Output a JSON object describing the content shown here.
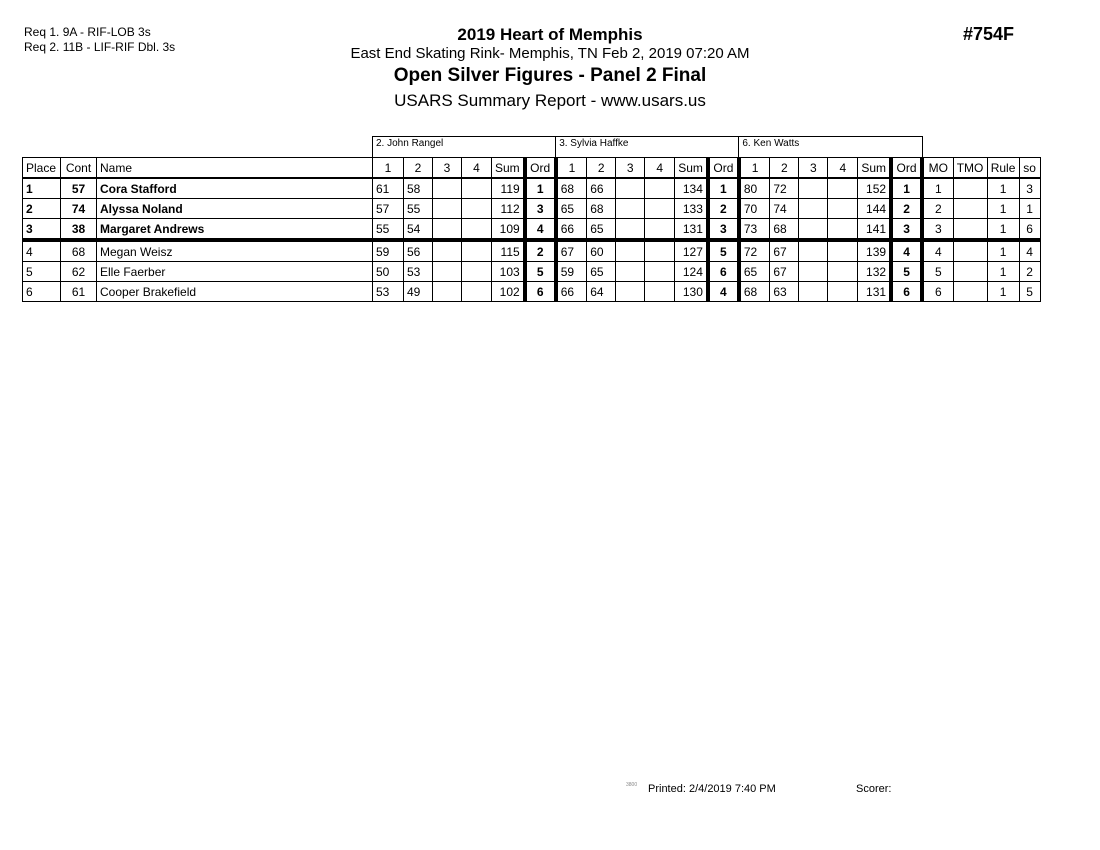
{
  "requirements": [
    "Req  1.  9A - RIF-LOB 3s",
    "Req  2.  11B - LIF-RIF Dbl. 3s"
  ],
  "header": {
    "event": "2019 Heart of Memphis",
    "venue": "East End Skating Rink- Memphis, TN   Feb 2, 2019  07:20 AM",
    "category": "Open Silver Figures - Panel 2 Final",
    "report": "USARS Summary Report - www.usars.us",
    "code": "#754F"
  },
  "judges": [
    "2.  John Rangel",
    "3.  Sylvia Haffke",
    "6.  Ken Watts"
  ],
  "columns": {
    "place": "Place",
    "cont": "Cont",
    "name": "Name",
    "scores": [
      "1",
      "2",
      "3",
      "4"
    ],
    "sum": "Sum",
    "ord": "Ord",
    "mo": "MO",
    "tmo": "TMO",
    "rule": "Rule",
    "so": "so"
  },
  "rows": [
    {
      "place": "1",
      "cont": "57",
      "name": "Cora Stafford",
      "bold": true,
      "judges": [
        {
          "s": [
            "61",
            "58",
            "",
            ""
          ],
          "sum": "119",
          "ord": "1"
        },
        {
          "s": [
            "68",
            "66",
            "",
            ""
          ],
          "sum": "134",
          "ord": "1"
        },
        {
          "s": [
            "80",
            "72",
            "",
            ""
          ],
          "sum": "152",
          "ord": "1"
        }
      ],
      "mo": "1",
      "tmo": "",
      "rule": "1",
      "so": "3"
    },
    {
      "place": "2",
      "cont": "74",
      "name": "Alyssa Noland",
      "bold": true,
      "judges": [
        {
          "s": [
            "57",
            "55",
            "",
            ""
          ],
          "sum": "112",
          "ord": "3"
        },
        {
          "s": [
            "65",
            "68",
            "",
            ""
          ],
          "sum": "133",
          "ord": "2"
        },
        {
          "s": [
            "70",
            "74",
            "",
            ""
          ],
          "sum": "144",
          "ord": "2"
        }
      ],
      "mo": "2",
      "tmo": "",
      "rule": "1",
      "so": "1"
    },
    {
      "place": "3",
      "cont": "38",
      "name": "Margaret Andrews",
      "bold": true,
      "judges": [
        {
          "s": [
            "55",
            "54",
            "",
            ""
          ],
          "sum": "109",
          "ord": "4"
        },
        {
          "s": [
            "66",
            "65",
            "",
            ""
          ],
          "sum": "131",
          "ord": "3"
        },
        {
          "s": [
            "73",
            "68",
            "",
            ""
          ],
          "sum": "141",
          "ord": "3"
        }
      ],
      "mo": "3",
      "tmo": "",
      "rule": "1",
      "so": "6"
    },
    {
      "place": "4",
      "cont": "68",
      "name": "Megan Weisz",
      "bold": false,
      "judges": [
        {
          "s": [
            "59",
            "56",
            "",
            ""
          ],
          "sum": "115",
          "ord": "2"
        },
        {
          "s": [
            "67",
            "60",
            "",
            ""
          ],
          "sum": "127",
          "ord": "5"
        },
        {
          "s": [
            "72",
            "67",
            "",
            ""
          ],
          "sum": "139",
          "ord": "4"
        }
      ],
      "mo": "4",
      "tmo": "",
      "rule": "1",
      "so": "4"
    },
    {
      "place": "5",
      "cont": "62",
      "name": "Elle Faerber",
      "bold": false,
      "judges": [
        {
          "s": [
            "50",
            "53",
            "",
            ""
          ],
          "sum": "103",
          "ord": "5"
        },
        {
          "s": [
            "59",
            "65",
            "",
            ""
          ],
          "sum": "124",
          "ord": "6"
        },
        {
          "s": [
            "65",
            "67",
            "",
            ""
          ],
          "sum": "132",
          "ord": "5"
        }
      ],
      "mo": "5",
      "tmo": "",
      "rule": "1",
      "so": "2"
    },
    {
      "place": "6",
      "cont": "61",
      "name": "Cooper Brakefield",
      "bold": false,
      "judges": [
        {
          "s": [
            "53",
            "49",
            "",
            ""
          ],
          "sum": "102",
          "ord": "6"
        },
        {
          "s": [
            "66",
            "64",
            "",
            ""
          ],
          "sum": "130",
          "ord": "4"
        },
        {
          "s": [
            "68",
            "63",
            "",
            ""
          ],
          "sum": "131",
          "ord": "6"
        }
      ],
      "mo": "6",
      "tmo": "",
      "rule": "1",
      "so": "5"
    }
  ],
  "footer": {
    "version": "3800",
    "printed": "Printed:  2/4/2019  7:40 PM",
    "scorer": "Scorer:"
  }
}
